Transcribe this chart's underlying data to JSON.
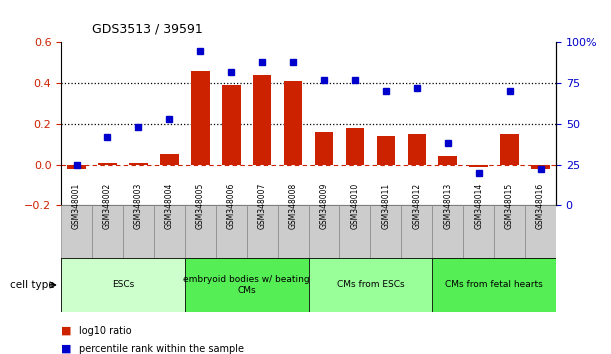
{
  "title": "GDS3513 / 39591",
  "samples": [
    "GSM348001",
    "GSM348002",
    "GSM348003",
    "GSM348004",
    "GSM348005",
    "GSM348006",
    "GSM348007",
    "GSM348008",
    "GSM348009",
    "GSM348010",
    "GSM348011",
    "GSM348012",
    "GSM348013",
    "GSM348014",
    "GSM348015",
    "GSM348016"
  ],
  "log10_ratio": [
    -0.02,
    0.01,
    0.01,
    0.05,
    0.46,
    0.39,
    0.44,
    0.41,
    0.16,
    0.18,
    0.14,
    0.15,
    0.04,
    -0.01,
    0.15,
    -0.02
  ],
  "percentile_rank": [
    25,
    42,
    48,
    53,
    95,
    82,
    88,
    88,
    77,
    77,
    70,
    72,
    38,
    20,
    70,
    22
  ],
  "cell_types": [
    {
      "label": "ESCs",
      "start": 0,
      "end": 3,
      "color": "#ccffcc"
    },
    {
      "label": "embryoid bodies w/ beating\nCMs",
      "start": 4,
      "end": 7,
      "color": "#55ee55"
    },
    {
      "label": "CMs from ESCs",
      "start": 8,
      "end": 11,
      "color": "#99ff99"
    },
    {
      "label": "CMs from fetal hearts",
      "start": 12,
      "end": 15,
      "color": "#55ee55"
    }
  ],
  "bar_color": "#cc2200",
  "dot_color": "#0000cc",
  "left_ylim": [
    -0.2,
    0.6
  ],
  "right_ylim": [
    0,
    100
  ],
  "left_yticks": [
    -0.2,
    0.0,
    0.2,
    0.4,
    0.6
  ],
  "right_yticks": [
    0,
    25,
    50,
    75,
    100
  ],
  "hline_values": [
    0.2,
    0.4
  ],
  "zero_line_color": "#cc2200",
  "background_color": "#ffffff",
  "sample_box_color": "#cccccc",
  "cell_type_label": "cell type",
  "legend": [
    {
      "color": "#cc2200",
      "label": "log10 ratio"
    },
    {
      "color": "#0000cc",
      "label": "percentile rank within the sample"
    }
  ]
}
